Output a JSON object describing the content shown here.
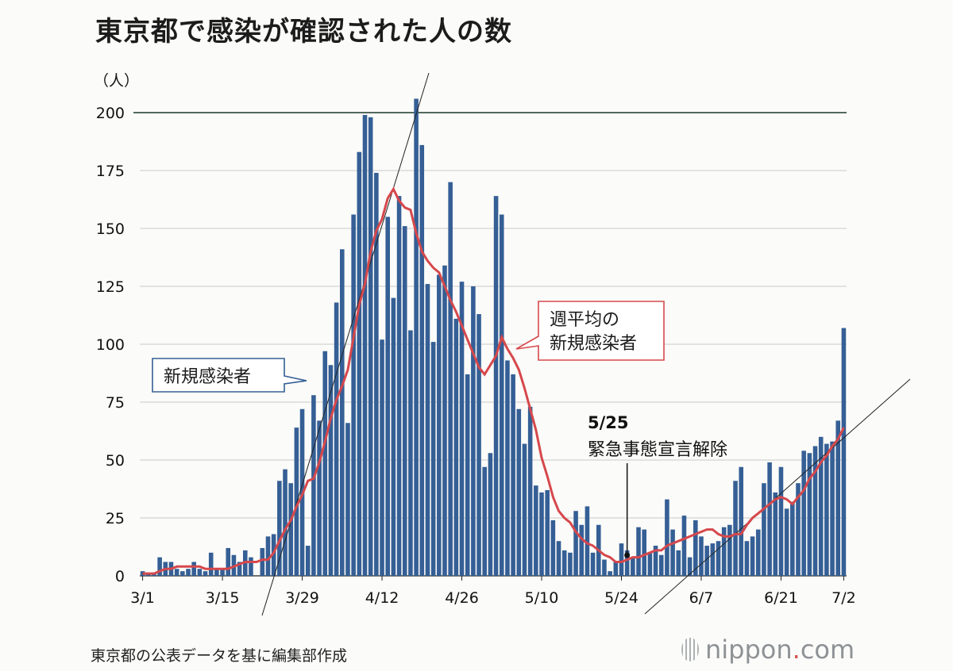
{
  "title": "東京都で感染が確認された人の数",
  "source": "東京都の公表データを基に編集部作成",
  "brand": {
    "name": "nippon",
    "dot": ".",
    "suffix": "com"
  },
  "colors": {
    "bar": "#355f95",
    "line": "#d6484c",
    "callout_blue": "#355f95",
    "callout_red": "#d6484c"
  },
  "chart_data": {
    "type": "bar",
    "ylabel": "（人）",
    "ylim": [
      0,
      200
    ],
    "yticks": [
      "0",
      "25",
      "50",
      "75",
      "100",
      "125",
      "150",
      "175",
      "200"
    ],
    "xtick_labels": [
      "3/1",
      "3/15",
      "3/29",
      "4/12",
      "4/26",
      "5/10",
      "5/24",
      "6/7",
      "6/21",
      "7/2"
    ],
    "xtick_index": [
      0,
      14,
      28,
      42,
      56,
      70,
      84,
      98,
      112,
      123
    ],
    "series": [
      {
        "name": "新規感染者",
        "values": [
          2,
          1,
          1,
          8,
          6,
          6,
          3,
          2,
          3,
          6,
          3,
          2,
          10,
          3,
          3,
          12,
          9,
          6,
          11,
          8,
          0,
          12,
          17,
          18,
          41,
          46,
          40,
          64,
          72,
          13,
          78,
          67,
          97,
          91,
          118,
          141,
          66,
          156,
          183,
          199,
          198,
          174,
          102,
          155,
          120,
          164,
          151,
          106,
          206,
          186,
          126,
          101,
          130,
          134,
          170,
          111,
          127,
          87,
          125,
          113,
          47,
          53,
          164,
          156,
          93,
          87,
          72,
          57,
          73,
          39,
          36,
          37,
          24,
          15,
          11,
          10,
          28,
          22,
          30,
          10,
          22,
          7,
          2,
          6,
          14,
          11,
          8,
          21,
          20,
          10,
          13,
          9,
          33,
          20,
          11,
          26,
          8,
          24,
          17,
          13,
          14,
          15,
          21,
          22,
          41,
          47,
          15,
          17,
          20,
          40,
          49,
          36,
          47,
          29,
          32,
          40,
          54,
          53,
          56,
          60,
          57,
          58,
          67,
          107
        ]
      },
      {
        "name": "週平均の\n新規感染者",
        "values": [
          1,
          1,
          1,
          2,
          3,
          3,
          4,
          4,
          4,
          4,
          4,
          3,
          3,
          3,
          3,
          3,
          4,
          5,
          6,
          6,
          6,
          7,
          7,
          10,
          15,
          20,
          24,
          30,
          35,
          41,
          42,
          49,
          58,
          68,
          76,
          82,
          89,
          103,
          117,
          126,
          140,
          149,
          154,
          163,
          167,
          162,
          159,
          158,
          148,
          140,
          136,
          133,
          131,
          125,
          119,
          114,
          108,
          102,
          96,
          90,
          87,
          91,
          95,
          103,
          98,
          94,
          89,
          81,
          72,
          63,
          51,
          43,
          34,
          28,
          25,
          23,
          19,
          16,
          14,
          13,
          11,
          9,
          8,
          6,
          6,
          7,
          8,
          8,
          9,
          10,
          11,
          11,
          13,
          14,
          15,
          16,
          17,
          18,
          19,
          20,
          20,
          18,
          17,
          17,
          18,
          18,
          22,
          25,
          27,
          29,
          31,
          33,
          34,
          33,
          31,
          34,
          37,
          42,
          45,
          49,
          52,
          56,
          59,
          64
        ]
      }
    ],
    "annotations": [
      {
        "label": "新規感染者"
      },
      {
        "label": "週平均の",
        "label2": "新規感染者"
      },
      {
        "label": "5/25",
        "label2": "緊急事態宣言解除"
      }
    ]
  }
}
